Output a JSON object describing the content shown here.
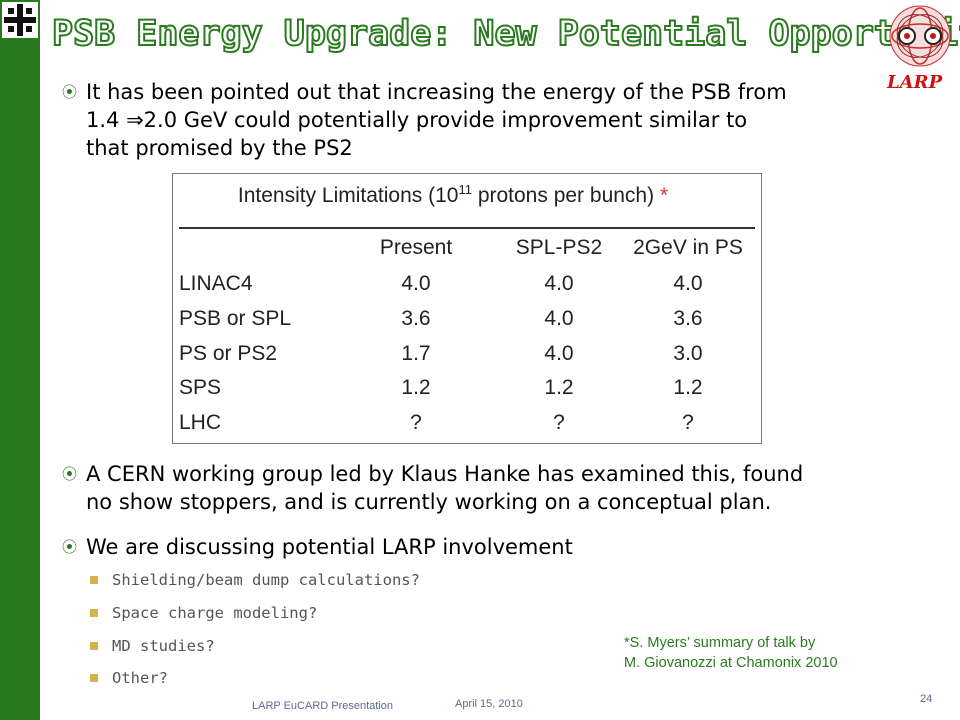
{
  "title": "PSB Energy Upgrade: New Potential Opportunity",
  "logo_text": "LARP",
  "bullets": [
    {
      "lines": [
        "It has been pointed out that increasing the energy of the PSB from",
        "1.4 ⇒2.0 GeV could potentially provide improvement similar to",
        "that promised by the PS2"
      ]
    },
    {
      "lines": [
        "A CERN working group led by Klaus Hanke has examined this, found",
        "no show stoppers, and is currently working on a conceptual plan."
      ]
    },
    {
      "lines": [
        "We are discussing potential LARP involvement"
      ]
    }
  ],
  "sub_bullets": [
    "Shielding/beam dump calculations?",
    "Space charge modeling?",
    "MD studies?",
    "Other?"
  ],
  "table": {
    "caption_pre": "Intensity Limitations (10",
    "caption_sup": "11",
    "caption_post": " protons per bunch)",
    "caption_star": "*",
    "headers": [
      "Present",
      "SPL-PS2",
      "2GeV in PS"
    ],
    "rows": [
      {
        "label": "LINAC4",
        "values": [
          "4.0",
          "4.0",
          "4.0"
        ]
      },
      {
        "label": "PSB or SPL",
        "values": [
          "3.6",
          "4.0",
          "3.6"
        ]
      },
      {
        "label": "PS or PS2",
        "values": [
          "1.7",
          "4.0",
          "3.0"
        ]
      },
      {
        "label": "SPS",
        "values": [
          "1.2",
          "1.2",
          "1.2"
        ]
      },
      {
        "label": "LHC",
        "values": [
          "?",
          "?",
          "?"
        ]
      }
    ]
  },
  "footnote": [
    "*S. Myers’ summary of talk by",
    "M. Giovanozzi at Chamonix 2010"
  ],
  "footer": {
    "left": "LARP EuCARD Presentation",
    "date": "April 15, 2010",
    "page": "24"
  },
  "colors": {
    "accent_green": "#2a7a1f",
    "sub_bullet_gold": "#d4b44a",
    "larp_red": "#d01010"
  },
  "icons": {
    "bullet": "circled-dot-icon",
    "sub_bullet": "square-icon",
    "top_left": "fermilab-logo-icon",
    "top_right": "larp-emblem-icon"
  }
}
